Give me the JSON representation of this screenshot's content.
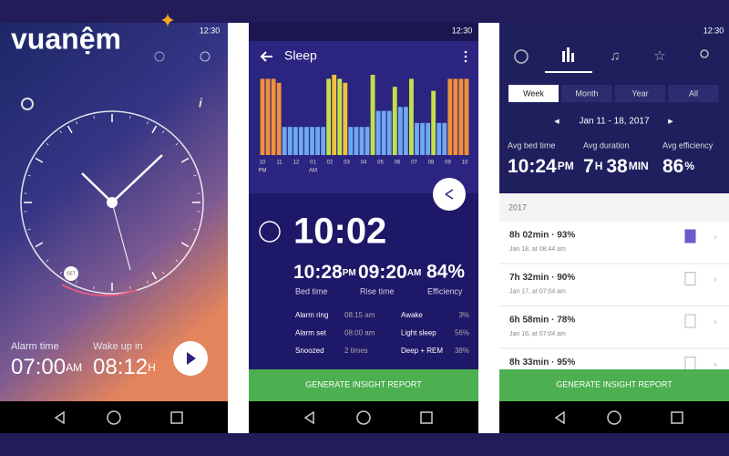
{
  "logo": "vuanệm",
  "screens": [
    {
      "status_time": "12:30",
      "clock_badge": "SET",
      "alarm": {
        "label": "Alarm time",
        "value": "07:00",
        "suffix": "AM"
      },
      "wake": {
        "label": "Wake up in",
        "value": "08:12",
        "suffix": "H"
      }
    },
    {
      "status_time": "12:30",
      "title": "Sleep",
      "chart": {
        "labels": [
          "10",
          "11",
          "12",
          "01",
          "02",
          "03",
          "04",
          "05",
          "06",
          "07",
          "08",
          "09",
          "10"
        ],
        "sublabels": [
          "PM",
          null,
          null,
          "AM",
          null,
          null,
          null,
          null,
          null,
          null,
          null,
          null,
          null
        ],
        "values": [
          95,
          95,
          95,
          90,
          35,
          35,
          35,
          35,
          35,
          35,
          35,
          35,
          95,
          100,
          95,
          90,
          35,
          35,
          35,
          35,
          100,
          55,
          55,
          55,
          85,
          60,
          60,
          95,
          40,
          40,
          40,
          80,
          40,
          40,
          95,
          95,
          95,
          95
        ],
        "colors": [
          "#f0913a",
          "#f0913a",
          "#f0913a",
          "#f0913a",
          "#6fa8f0",
          "#6fa8f0",
          "#6fa8f0",
          "#6fa8f0",
          "#6fa8f0",
          "#6fa8f0",
          "#6fa8f0",
          "#6fa8f0",
          "#c3e04a",
          "#f0c23a",
          "#c3e04a",
          "#f0c23a",
          "#6fa8f0",
          "#6fa8f0",
          "#6fa8f0",
          "#6fa8f0",
          "#c3e04a",
          "#6fa8f0",
          "#6fa8f0",
          "#6fa8f0",
          "#c3e04a",
          "#6fa8f0",
          "#6fa8f0",
          "#c3e04a",
          "#6fa8f0",
          "#6fa8f0",
          "#6fa8f0",
          "#c3e04a",
          "#6fa8f0",
          "#6fa8f0",
          "#f0913a",
          "#f0913a",
          "#f0913a",
          "#f0913a"
        ]
      },
      "duration": "10:02",
      "bed_time": {
        "value": "10:28",
        "suffix": "PM",
        "label": "Bed time"
      },
      "rise_time": {
        "value": "09:20",
        "suffix": "AM",
        "label": "Rise time"
      },
      "efficiency": {
        "value": "84%",
        "label": "Efficiency"
      },
      "details": [
        {
          "label": "Alarm ring",
          "value": "08:15 am"
        },
        {
          "label": "Alarm set",
          "value": "08:00 am"
        },
        {
          "label": "Snoozed",
          "value": "2 times"
        }
      ],
      "stages": [
        {
          "label": "Awake",
          "value": "3%"
        },
        {
          "label": "Light sleep",
          "value": "56%"
        },
        {
          "label": "Deep + REM",
          "value": "38%"
        }
      ],
      "button": "GENERATE INSIGHT REPORT"
    },
    {
      "status_time": "12:30",
      "tabs": [
        "Week",
        "Month",
        "Year",
        "All"
      ],
      "range": "Jan 11 - 18, 2017",
      "stats": [
        {
          "label": "Avg bed time",
          "parts": [
            "10:24",
            "PM"
          ]
        },
        {
          "label": "Avg duration",
          "parts": [
            "7",
            "H",
            "38",
            "MIN"
          ]
        },
        {
          "label": "Avg efficiency",
          "parts": [
            "86",
            "%"
          ]
        }
      ],
      "year": "2017",
      "entries": [
        {
          "summary": "8h 02min · 93%",
          "date": "Jan 18, at 08:44 am"
        },
        {
          "summary": "7h 32min · 90%",
          "date": "Jan 17, at 07:04 am"
        },
        {
          "summary": "6h 58min · 78%",
          "date": "Jan 16, at 07:04 am"
        },
        {
          "summary": "8h 33min · 95%"
        }
      ],
      "button": "GENERATE INSIGHT REPORT"
    }
  ]
}
